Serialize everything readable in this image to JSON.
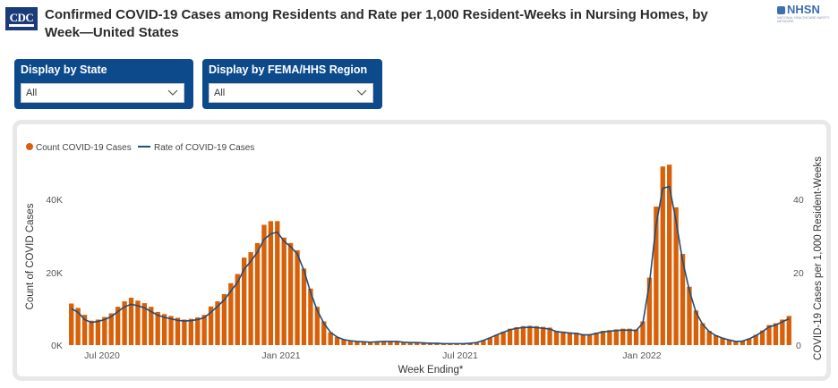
{
  "header": {
    "logo_text": "CDC",
    "title": "Confirmed COVID-19 Cases among Residents and Rate per 1,000 Resident-Weeks in Nursing Homes, by Week—United States",
    "nhsn_mark": "NHSN",
    "nhsn_sub": "NATIONAL HEALTHCARE SAFETY NETWORK"
  },
  "filters": {
    "state": {
      "label": "Display by State",
      "value": "All"
    },
    "region": {
      "label": "Display by FEMA/HHS Region",
      "value": "All"
    }
  },
  "colors": {
    "bar": "#d86008",
    "line": "#1f4e79",
    "slicer_bg": "#0d4a8c"
  },
  "chart_data": {
    "type": "bar",
    "legend": [
      "Count COVID-19 Cases",
      "Rate of COVID-19 Cases"
    ],
    "legend_position": "top-left",
    "xlabel": "Week Ending*",
    "ylabel": "Count of COVID Cases",
    "ylabel_right": "COVID-19 Cases per 1,000 Resident-Weeks",
    "x_ticks": [
      "Jul 2020",
      "Jan 2021",
      "Jul 2021",
      "Jan 2022"
    ],
    "y_ticks": [
      "0K",
      "20K",
      "40K"
    ],
    "y_ticks_right": [
      "0",
      "20",
      "40"
    ],
    "ylim": [
      0,
      52000
    ],
    "ylim_right": [
      0,
      52
    ],
    "grid": false,
    "series": [
      {
        "name": "Count COVID-19 Cases",
        "values": [
          11400,
          10200,
          8300,
          6700,
          7000,
          7700,
          8700,
          10500,
          12000,
          13000,
          12200,
          11500,
          10500,
          9100,
          8500,
          8000,
          7500,
          7000,
          7200,
          7600,
          8300,
          10600,
          12000,
          14000,
          17000,
          19500,
          24000,
          25500,
          28000,
          33000,
          34000,
          34000,
          29500,
          28000,
          26000,
          21000,
          15500,
          10500,
          6500,
          3500,
          2200,
          1500,
          1200,
          1000,
          900,
          800,
          900,
          1000,
          1000,
          1000,
          800,
          700,
          700,
          600,
          500,
          500,
          400,
          400,
          400,
          400,
          500,
          700,
          1300,
          2000,
          2800,
          3700,
          4500,
          4900,
          5200,
          5300,
          5200,
          5000,
          4800,
          3900,
          3700,
          3500,
          3400,
          3000,
          3000,
          3400,
          3900,
          4100,
          4300,
          4500,
          4500,
          4300,
          6500,
          18500,
          38000,
          49000,
          49500,
          37800,
          25000,
          16000,
          9500,
          6000,
          3900,
          2700,
          2000,
          1500,
          1100,
          1200,
          1800,
          2800,
          4000,
          5500,
          6000,
          7000,
          8000
        ]
      },
      {
        "name": "Rate of COVID-19 Cases",
        "values": [
          10.0,
          9.0,
          7.0,
          6.2,
          6.5,
          7.0,
          7.8,
          9.2,
          10.5,
          11.2,
          10.8,
          10.2,
          9.2,
          8.2,
          7.6,
          7.2,
          6.8,
          6.6,
          6.7,
          7.0,
          7.5,
          9.0,
          10.6,
          12.4,
          14.8,
          17.2,
          20.8,
          23.0,
          25.5,
          29.0,
          30.5,
          31.0,
          28.5,
          27.0,
          25.0,
          20.5,
          14.5,
          9.5,
          6.0,
          3.5,
          2.2,
          1.5,
          1.2,
          1.0,
          0.9,
          0.8,
          0.9,
          1.0,
          1.0,
          1.0,
          0.8,
          0.7,
          0.7,
          0.6,
          0.5,
          0.5,
          0.4,
          0.4,
          0.4,
          0.4,
          0.5,
          0.7,
          1.3,
          2.0,
          2.8,
          3.5,
          4.2,
          4.6,
          4.8,
          4.9,
          4.8,
          4.6,
          4.4,
          3.7,
          3.5,
          3.3,
          3.2,
          2.8,
          2.8,
          3.2,
          3.6,
          3.8,
          4.0,
          4.1,
          4.1,
          4.0,
          6.0,
          17.0,
          33.0,
          43.0,
          43.5,
          34.0,
          23.0,
          15.0,
          9.0,
          5.7,
          3.7,
          2.6,
          1.9,
          1.4,
          1.0,
          1.1,
          1.7,
          2.6,
          3.7,
          5.0,
          5.5,
          6.4,
          7.2
        ]
      }
    ]
  }
}
